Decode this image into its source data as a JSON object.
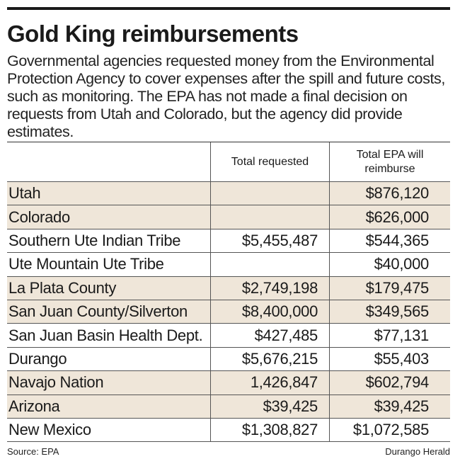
{
  "chart_data": {
    "type": "table",
    "title": "Gold King reimbursements",
    "subtitle": "Governmental agencies requested money from the Environmental Protection Agency to cover expenses after the spill and future costs, such as monitoring. The EPA has not made a final decision on requests from Utah and Colorado, but the agency did provide estimates.",
    "columns": [
      "",
      "Total requested",
      "Total EPA will reimburse"
    ],
    "rows": [
      {
        "name": "Utah",
        "requested": "",
        "reimburse": "$876,120",
        "shaded": true
      },
      {
        "name": "Colorado",
        "requested": "",
        "reimburse": "$626,000",
        "shaded": true
      },
      {
        "name": "Southern Ute Indian Tribe",
        "requested": "$5,455,487",
        "reimburse": "$544,365",
        "shaded": false
      },
      {
        "name": "Ute Mountain Ute Tribe",
        "requested": "",
        "reimburse": "$40,000",
        "shaded": false
      },
      {
        "name": "La Plata County",
        "requested": "$2,749,198",
        "reimburse": "$179,475",
        "shaded": true
      },
      {
        "name": "San Juan County/Silverton",
        "requested": "$8,400,000",
        "reimburse": "$349,565",
        "shaded": true
      },
      {
        "name": "San Juan Basin Health Dept.",
        "requested": "$427,485",
        "reimburse": "$77,131",
        "shaded": false
      },
      {
        "name": "Durango",
        "requested": "$5,676,215",
        "reimburse": "$55,403",
        "shaded": false
      },
      {
        "name": "Navajo Nation",
        "requested": "1,426,847",
        "reimburse": "$602,794",
        "shaded": true
      },
      {
        "name": "Arizona",
        "requested": "$39,425",
        "reimburse": "$39,425",
        "shaded": true
      },
      {
        "name": "New Mexico",
        "requested": "$1,308,827",
        "reimburse": "$1,072,585",
        "shaded": false
      }
    ],
    "source": "Source: EPA",
    "credit": "Durango Herald",
    "shade_color": "#efe6d9"
  }
}
